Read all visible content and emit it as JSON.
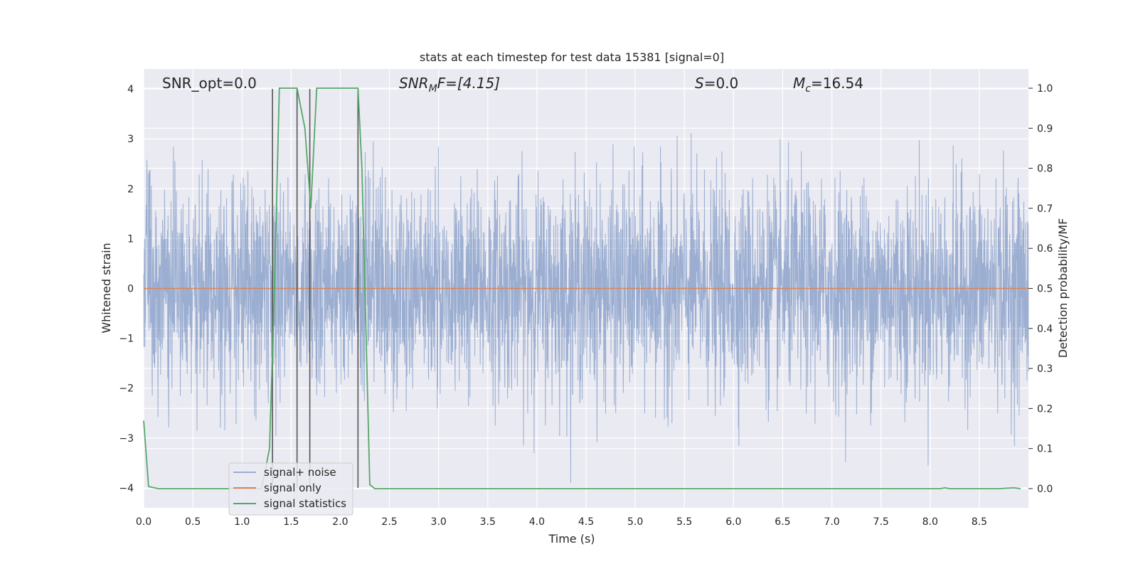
{
  "chart_data": {
    "type": "line",
    "title": "stats at each timestep for test data 15381 [signal=0]",
    "xlabel": "Time (s)",
    "ylabel": "Whitened strain",
    "y2label": "Detection probability/MF",
    "xlim": [
      0,
      9
    ],
    "ylim": [
      -4.4,
      4.4
    ],
    "y2lim": [
      -0.048,
      1.048
    ],
    "xticks": [
      "0.0",
      "0.5",
      "1.0",
      "1.5",
      "2.0",
      "2.5",
      "3.0",
      "3.5",
      "4.0",
      "4.5",
      "5.0",
      "5.5",
      "6.0",
      "6.5",
      "7.0",
      "7.5",
      "8.0",
      "8.5"
    ],
    "yticks": [
      "−4",
      "−3",
      "−2",
      "−1",
      "0",
      "1",
      "2",
      "3",
      "4"
    ],
    "y2ticks": [
      "0.0",
      "0.1",
      "0.2",
      "0.3",
      "0.4",
      "0.5",
      "0.6",
      "0.7",
      "0.8",
      "0.9",
      "1.0"
    ],
    "grid": true,
    "legend_position": "lower-left",
    "annotations": {
      "snr_opt": "SNR_opt=0.0",
      "snr_mf": "SNRMF=[4.15]",
      "snr_mf_base": "SNR",
      "snr_mf_sub": "M",
      "snr_mf_rest": "F=[4.15]",
      "s": "S=0.0",
      "s_base": "S",
      "s_rest": "=0.0",
      "mc": "Mc=16.54",
      "mc_base": "M",
      "mc_sub": "c",
      "mc_rest": "=16.54"
    },
    "series": [
      {
        "name": "signal+ noise",
        "color": "#4c72b0",
        "description": "noise band roughly ±2.5 with peaks up to ±3.9",
        "amplitude_range": [
          -3.9,
          3.9
        ]
      },
      {
        "name": "signal only",
        "color": "#dd8452",
        "x": [
          0,
          9
        ],
        "y": [
          0,
          0
        ]
      },
      {
        "name": "signal statistics",
        "color": "#55a868",
        "axis": "right",
        "x": [
          0,
          0.05,
          0.15,
          1.2,
          1.28,
          1.33,
          1.38,
          1.56,
          1.64,
          1.7,
          1.76,
          2.18,
          2.22,
          2.3,
          2.35,
          8.1,
          8.15,
          8.2,
          8.7,
          8.85,
          8.92
        ],
        "y": [
          0.17,
          0.005,
          0.0,
          0.0,
          0.1,
          0.5,
          1.0,
          1.0,
          0.9,
          0.7,
          1.0,
          1.0,
          0.8,
          0.01,
          0.0,
          0.0,
          0.002,
          0.0,
          0.0,
          0.002,
          0.0
        ]
      }
    ],
    "vertical_markers_x": [
      1.31,
      1.56,
      1.69,
      2.18
    ]
  }
}
